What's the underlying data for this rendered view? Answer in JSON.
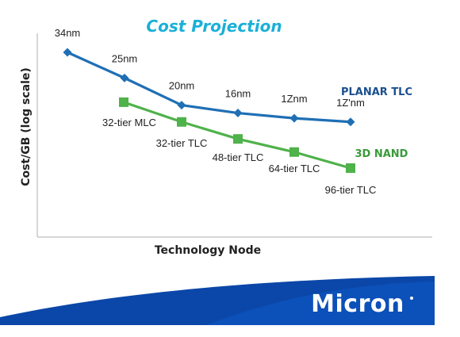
{
  "chart_data": {
    "type": "line",
    "title": "Cost Projection",
    "xlabel": "Technology Node",
    "ylabel": "Cost/GB (log scale)",
    "y_scale": "log",
    "y_units_printed": false,
    "grid": false,
    "legend": "labels at series ends (right)",
    "series": [
      {
        "name": "PLANAR TLC",
        "color": "#1f6fb5",
        "marker": "diamond",
        "points": [
          {
            "label": "34nm",
            "y": 100
          },
          {
            "label": "25nm",
            "y": 70
          },
          {
            "label": "20nm",
            "y": 48
          },
          {
            "label": "16nm",
            "y": 43
          },
          {
            "label": "1Znm",
            "y": 40
          },
          {
            "label": "1Z'nm",
            "y": 38
          }
        ]
      },
      {
        "name": "3D NAND",
        "color": "#4fb24a",
        "marker": "square",
        "points": [
          {
            "label": "32-tier MLC",
            "y": 50
          },
          {
            "label": "32-tier TLC",
            "y": 38
          },
          {
            "label": "48-tier TLC",
            "y": 30
          },
          {
            "label": "64-tier TLC",
            "y": 25
          },
          {
            "label": "96-tier TLC",
            "y": 20
          }
        ]
      }
    ]
  },
  "branding": {
    "logo_text": "Micron",
    "logo_color": "#1565c0"
  }
}
